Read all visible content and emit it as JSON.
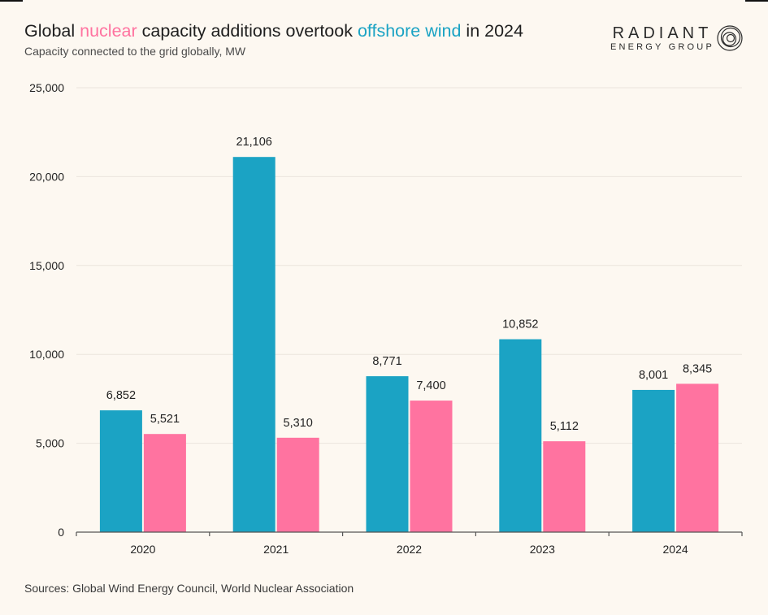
{
  "header": {
    "title_pre": "Global ",
    "title_nuclear": "nuclear",
    "title_mid": " capacity additions overtook ",
    "title_wind": "offshore wind",
    "title_post": " in 2024",
    "subtitle": "Capacity connected to the grid globally, MW"
  },
  "logo": {
    "line1": "RADIANT",
    "line2": "ENERGY GROUP"
  },
  "source": "Sources: Global Wind Energy Council, World Nuclear Association",
  "colors": {
    "offshore_wind": "#1ba3c4",
    "nuclear": "#ff73a0",
    "background": "#fdf8f1"
  },
  "chart_data": {
    "type": "bar",
    "title": "Global nuclear capacity additions overtook offshore wind in 2024",
    "ylabel": "Capacity connected to the grid globally, MW",
    "xlabel": "",
    "categories": [
      "2020",
      "2021",
      "2022",
      "2023",
      "2024"
    ],
    "series": [
      {
        "name": "offshore wind",
        "values": [
          6852,
          21106,
          8771,
          10852,
          8001
        ],
        "labels": [
          "6,852",
          "21,106",
          "8,771",
          "10,852",
          "8,001"
        ]
      },
      {
        "name": "nuclear",
        "values": [
          5521,
          5310,
          7400,
          5112,
          8345
        ],
        "labels": [
          "5,521",
          "5,310",
          "7,400",
          "5,112",
          "8,345"
        ]
      }
    ],
    "ylim": [
      0,
      25000
    ],
    "yticks": [
      0,
      5000,
      10000,
      15000,
      20000,
      25000
    ],
    "ytick_labels": [
      "0",
      "5,000",
      "10,000",
      "15,000",
      "20,000",
      "25,000"
    ],
    "grid": true,
    "legend": "in title"
  }
}
